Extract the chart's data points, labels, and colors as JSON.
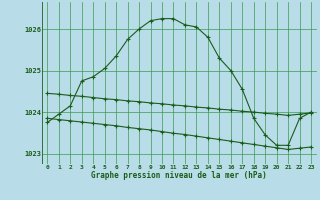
{
  "title": "Graphe pression niveau de la mer (hPa)",
  "background_color": "#b8dde8",
  "grid_color": "#3a9a50",
  "line_color": "#1a5c1a",
  "x_hours": [
    0,
    1,
    2,
    3,
    4,
    5,
    6,
    7,
    8,
    9,
    10,
    11,
    12,
    13,
    14,
    15,
    16,
    17,
    18,
    19,
    20,
    21,
    22,
    23
  ],
  "line_main": [
    1023.75,
    1023.95,
    1024.15,
    1024.75,
    1024.85,
    1025.05,
    1025.35,
    1025.75,
    1026.0,
    1026.2,
    1026.25,
    1026.25,
    1026.1,
    1026.05,
    1025.8,
    1025.3,
    1025.0,
    1024.55,
    1023.85,
    1023.45,
    1023.2,
    1023.2,
    1023.85,
    1024.0
  ],
  "line_upper": [
    1024.45,
    1024.43,
    1024.4,
    1024.38,
    1024.35,
    1024.32,
    1024.3,
    1024.27,
    1024.25,
    1024.22,
    1024.2,
    1024.17,
    1024.15,
    1024.12,
    1024.1,
    1024.07,
    1024.05,
    1024.02,
    1024.0,
    1023.97,
    1023.95,
    1023.92,
    1023.95,
    1023.98
  ],
  "line_lower": [
    1023.85,
    1023.82,
    1023.79,
    1023.76,
    1023.73,
    1023.7,
    1023.67,
    1023.63,
    1023.6,
    1023.57,
    1023.53,
    1023.49,
    1023.46,
    1023.42,
    1023.38,
    1023.34,
    1023.3,
    1023.26,
    1023.22,
    1023.18,
    1023.14,
    1023.1,
    1023.13,
    1023.16
  ],
  "ylim": [
    1022.75,
    1026.65
  ],
  "yticks": [
    1023,
    1024,
    1025,
    1026
  ],
  "xticks": [
    0,
    1,
    2,
    3,
    4,
    5,
    6,
    7,
    8,
    9,
    10,
    11,
    12,
    13,
    14,
    15,
    16,
    17,
    18,
    19,
    20,
    21,
    22,
    23
  ]
}
